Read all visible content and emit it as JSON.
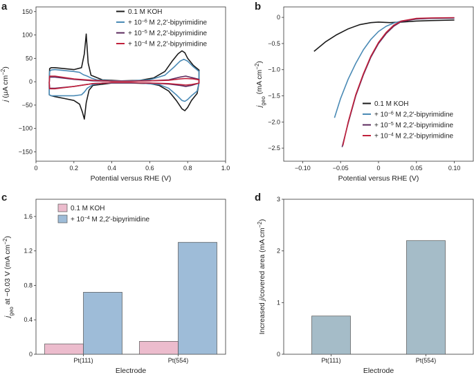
{
  "panels": [
    {
      "id": "a",
      "label": "a"
    },
    {
      "id": "b",
      "label": "b"
    },
    {
      "id": "c",
      "label": "c"
    },
    {
      "id": "d",
      "label": "d"
    }
  ],
  "colors": {
    "koh": "#1a1a1a",
    "e6": "#4a8ab5",
    "e5": "#5b2a5e",
    "e4": "#c0203b",
    "bar_koh": "#ecbccd",
    "bar_bipy": "#9ebcd8",
    "bar_d": "#a5bcc8"
  },
  "chart_data": [
    {
      "id": "a",
      "type": "line",
      "title": "",
      "xlabel": "Potential versus RHE (V)",
      "ylabel": "j (μA cm−2)",
      "xlim": [
        0,
        1.0
      ],
      "ylim": [
        -170,
        160
      ],
      "xticks": [
        0,
        0.2,
        0.4,
        0.6,
        0.8,
        1.0
      ],
      "xtick_labels": [
        "0",
        "0.2",
        "0.4",
        "0.6",
        "0.8",
        "1.0"
      ],
      "yticks": [
        -150,
        -100,
        -50,
        0,
        50,
        100,
        150
      ],
      "ytick_labels": [
        "−150",
        "−100",
        "−50",
        "0",
        "50",
        "100",
        "150"
      ],
      "legend": [
        "0.1 M KOH",
        "+ 10−6 M 2,2′-bipyrimidine",
        "+ 10−5 M 2,2′-bipyrimidine",
        "+ 10−4 M 2,2′-bipyrimidine"
      ],
      "series": [
        {
          "name": "0.1 M KOH",
          "color_key": "koh",
          "x": [
            0.07,
            0.072,
            0.08,
            0.1,
            0.15,
            0.2,
            0.24,
            0.255,
            0.265,
            0.275,
            0.29,
            0.35,
            0.45,
            0.55,
            0.62,
            0.68,
            0.72,
            0.75,
            0.77,
            0.785,
            0.8,
            0.83,
            0.86,
            0.86,
            0.85,
            0.82,
            0.8,
            0.785,
            0.77,
            0.74,
            0.7,
            0.65,
            0.6,
            0.5,
            0.4,
            0.3,
            0.28,
            0.265,
            0.255,
            0.245,
            0.23,
            0.2,
            0.15,
            0.1,
            0.08,
            0.07,
            0.07
          ],
          "y": [
            -2,
            28,
            30,
            30,
            28,
            26,
            30,
            60,
            102,
            40,
            14,
            4,
            2,
            3,
            8,
            22,
            45,
            60,
            66,
            62,
            50,
            35,
            25,
            -2,
            -25,
            -40,
            -55,
            -62,
            -58,
            -40,
            -20,
            -8,
            -4,
            -3,
            -3,
            -8,
            -18,
            -45,
            -80,
            -65,
            -48,
            -40,
            -36,
            -32,
            -30,
            -28,
            -2
          ]
        },
        {
          "name": "+ 10−6 M 2,2′-bipyrimidine",
          "color_key": "e6",
          "x": [
            0.07,
            0.072,
            0.08,
            0.1,
            0.15,
            0.2,
            0.23,
            0.25,
            0.27,
            0.29,
            0.32,
            0.4,
            0.5,
            0.6,
            0.68,
            0.73,
            0.76,
            0.78,
            0.8,
            0.83,
            0.86,
            0.86,
            0.85,
            0.82,
            0.8,
            0.785,
            0.77,
            0.74,
            0.7,
            0.65,
            0.55,
            0.45,
            0.35,
            0.3,
            0.27,
            0.255,
            0.24,
            0.2,
            0.15,
            0.1,
            0.08,
            0.07,
            0.07
          ],
          "y": [
            -2,
            22,
            25,
            26,
            24,
            22,
            20,
            15,
            12,
            8,
            4,
            2,
            2,
            4,
            14,
            32,
            44,
            48,
            44,
            32,
            22,
            -2,
            -20,
            -30,
            -38,
            -42,
            -40,
            -28,
            -14,
            -6,
            -3,
            -3,
            -3,
            -6,
            -14,
            -22,
            -28,
            -30,
            -30,
            -30,
            -30,
            -28,
            -2
          ]
        },
        {
          "name": "+ 10−5 M 2,2′-bipyrimidine",
          "color_key": "e5",
          "x": [
            0.07,
            0.072,
            0.1,
            0.2,
            0.3,
            0.4,
            0.5,
            0.6,
            0.7,
            0.76,
            0.79,
            0.83,
            0.86,
            0.86,
            0.82,
            0.79,
            0.76,
            0.7,
            0.6,
            0.5,
            0.4,
            0.3,
            0.2,
            0.1,
            0.072,
            0.07
          ],
          "y": [
            -2,
            10,
            10,
            5,
            2,
            1,
            1,
            2,
            4,
            10,
            12,
            8,
            5,
            -3,
            -8,
            -10,
            -8,
            -5,
            -3,
            -2,
            -2,
            -4,
            -10,
            -14,
            -14,
            -2
          ]
        },
        {
          "name": "+ 10−4 M 2,2′-bipyrimidine",
          "color_key": "e4",
          "x": [
            0.07,
            0.072,
            0.1,
            0.2,
            0.3,
            0.4,
            0.5,
            0.6,
            0.7,
            0.76,
            0.79,
            0.83,
            0.86,
            0.86,
            0.82,
            0.79,
            0.76,
            0.7,
            0.6,
            0.5,
            0.4,
            0.3,
            0.2,
            0.1,
            0.072,
            0.07
          ],
          "y": [
            -2,
            12,
            12,
            6,
            3,
            1,
            1,
            2,
            3,
            6,
            7,
            6,
            4,
            -3,
            -6,
            -7,
            -6,
            -4,
            -3,
            -2,
            -2,
            -4,
            -10,
            -15,
            -15,
            -2
          ]
        }
      ]
    },
    {
      "id": "b",
      "type": "line",
      "title": "",
      "xlabel": "Potential versus RHE (V)",
      "ylabel": "jgeo (mA cm−2)",
      "xlim": [
        -0.125,
        0.125
      ],
      "ylim": [
        -2.75,
        0.2
      ],
      "xticks": [
        -0.1,
        -0.05,
        0,
        0.05,
        0.1
      ],
      "xtick_labels": [
        "−0.10",
        "−0.05",
        "0",
        "0.05",
        "0.10"
      ],
      "yticks": [
        0,
        -0.5,
        -1.0,
        -1.5,
        -2.0,
        -2.5
      ],
      "ytick_labels": [
        "0",
        "−0.5",
        "−1.0",
        "−1.5",
        "−2.0",
        "−2.5"
      ],
      "legend": [
        "0.1 M KOH",
        "+ 10−6 M 2,2′-bipyrimidine",
        "+ 10−5 M 2,2′-bipyrimidine",
        "+ 10−4 M 2,2′-bipyrimidine"
      ],
      "series": [
        {
          "name": "0.1 M KOH",
          "color_key": "koh",
          "x": [
            -0.085,
            -0.07,
            -0.055,
            -0.04,
            -0.025,
            -0.01,
            0,
            0.015,
            0.03,
            0.05,
            0.07,
            0.1
          ],
          "y": [
            -0.65,
            -0.47,
            -0.33,
            -0.22,
            -0.14,
            -0.1,
            -0.09,
            -0.1,
            -0.09,
            -0.07,
            -0.06,
            -0.05
          ]
        },
        {
          "name": "+ 10−6 M 2,2′-bipyrimidine",
          "color_key": "e6",
          "x": [
            -0.058,
            -0.05,
            -0.04,
            -0.03,
            -0.02,
            -0.01,
            0,
            0.01,
            0.02,
            0.03,
            0.05,
            0.07,
            0.1
          ],
          "y": [
            -1.92,
            -1.55,
            -1.18,
            -0.88,
            -0.62,
            -0.42,
            -0.27,
            -0.17,
            -0.11,
            -0.07,
            -0.03,
            -0.02,
            -0.015
          ]
        },
        {
          "name": "+ 10−5 M 2,2′-bipyrimidine",
          "color_key": "e5",
          "x": [
            -0.048,
            -0.04,
            -0.03,
            -0.02,
            -0.01,
            0,
            0.01,
            0.02,
            0.03,
            0.05,
            0.07,
            0.1
          ],
          "y": [
            -2.48,
            -2.02,
            -1.5,
            -1.1,
            -0.76,
            -0.5,
            -0.31,
            -0.17,
            -0.08,
            -0.03,
            -0.015,
            -0.01
          ]
        },
        {
          "name": "+ 10−4 M 2,2′-bipyrimidine",
          "color_key": "e4",
          "x": [
            -0.047,
            -0.04,
            -0.03,
            -0.02,
            -0.01,
            0,
            0.01,
            0.02,
            0.03,
            0.05,
            0.07,
            0.1
          ],
          "y": [
            -2.45,
            -2.0,
            -1.48,
            -1.08,
            -0.74,
            -0.48,
            -0.29,
            -0.15,
            -0.07,
            -0.02,
            -0.01,
            -0.005
          ]
        }
      ]
    },
    {
      "id": "c",
      "type": "bar",
      "title": "",
      "xlabel": "Electrode",
      "ylabel": "jgeo at −0.03 V (mA cm−2)",
      "ylim": [
        0,
        1.8
      ],
      "yticks": [
        0,
        0.4,
        0.8,
        1.2,
        1.6
      ],
      "ytick_labels": [
        "0",
        "0.4",
        "0.8",
        "1.2",
        "1.6"
      ],
      "categories": [
        "Pt(111)",
        "Pt(554)"
      ],
      "series": [
        {
          "name": "0.1 M KOH",
          "color_key": "bar_koh",
          "values": [
            0.12,
            0.15
          ]
        },
        {
          "name": "+ 10−4 M 2,2′-bipyrimidine",
          "color_key": "bar_bipy",
          "values": [
            0.72,
            1.3
          ]
        }
      ]
    },
    {
      "id": "d",
      "type": "bar",
      "title": "",
      "xlabel": "Electrode",
      "ylabel": "Increased j/covered area (mA cm−2)",
      "ylim": [
        0,
        3
      ],
      "yticks": [
        0,
        1,
        2,
        3
      ],
      "ytick_labels": [
        "0",
        "1",
        "2",
        "3"
      ],
      "categories": [
        "Pt(111)",
        "Pt(554)"
      ],
      "series": [
        {
          "name": "Increased j/covered area",
          "color_key": "bar_d",
          "values": [
            0.74,
            2.2
          ]
        }
      ]
    }
  ]
}
